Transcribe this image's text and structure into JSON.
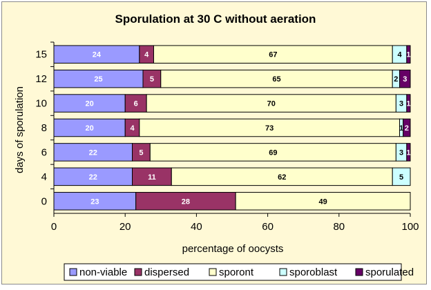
{
  "chart_data": {
    "type": "bar",
    "orientation": "horizontal",
    "stacked": true,
    "title": "Sporulation at 30 C without aeration",
    "xlabel": "percentage of oocysts",
    "ylabel": "days of sporulation",
    "xlim": [
      0,
      100
    ],
    "xticks": [
      0,
      20,
      40,
      60,
      80,
      100
    ],
    "categories": [
      "15",
      "12",
      "10",
      "8",
      "6",
      "4",
      "0"
    ],
    "series": [
      {
        "name": "non-viable",
        "color": "#9a9aff",
        "text_color": "#ffffff",
        "values": [
          24,
          25,
          20,
          20,
          22,
          22,
          23
        ]
      },
      {
        "name": "dispersed",
        "color": "#993366",
        "text_color": "#ffffff",
        "values": [
          4,
          5,
          6,
          4,
          5,
          11,
          28
        ]
      },
      {
        "name": "sporont",
        "color": "#ffffcc",
        "text_color": "#000000",
        "values": [
          67,
          65,
          70,
          73,
          69,
          62,
          49
        ]
      },
      {
        "name": "sporoblast",
        "color": "#ccffff",
        "text_color": "#000000",
        "values": [
          4,
          2,
          3,
          1,
          3,
          5,
          0
        ]
      },
      {
        "name": "sporulated",
        "color": "#660066",
        "text_color": "#ffffff",
        "values": [
          1,
          3,
          1,
          2,
          1,
          0,
          0
        ]
      }
    ],
    "legend_position": "bottom",
    "grid": false
  }
}
